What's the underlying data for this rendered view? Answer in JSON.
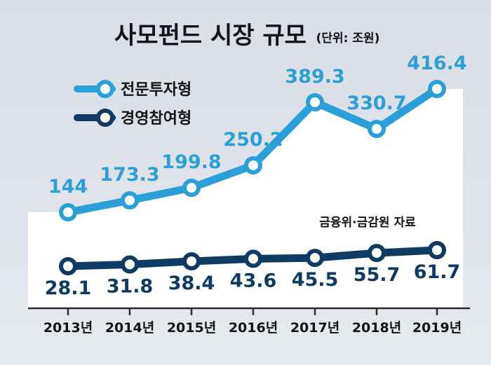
{
  "chart_data": {
    "type": "line",
    "title": "사모펀드 시장 규모",
    "unit_note": "(단위: 조원)",
    "source": "금융위·금감원 자료",
    "categories": [
      "2013년",
      "2014년",
      "2015년",
      "2016년",
      "2017년",
      "2018년",
      "2019년"
    ],
    "series": [
      {
        "name": "전문투자형",
        "color": "#2a9fd8",
        "values": [
          144,
          173.3,
          199.8,
          250.2,
          389.3,
          330.7,
          416.4
        ],
        "labels": [
          "144",
          "173.3",
          "199.8",
          "250.2",
          "389.3",
          "330.7",
          "416.4"
        ]
      },
      {
        "name": "경영참여형",
        "color": "#0e3a63",
        "values": [
          28.1,
          31.8,
          38.4,
          43.6,
          45.5,
          55.7,
          61.7
        ],
        "labels": [
          "28.1",
          "31.8",
          "38.4",
          "43.6",
          "45.5",
          "55.7",
          "61.7"
        ]
      }
    ],
    "legend_position": "top-left",
    "grid": false
  }
}
